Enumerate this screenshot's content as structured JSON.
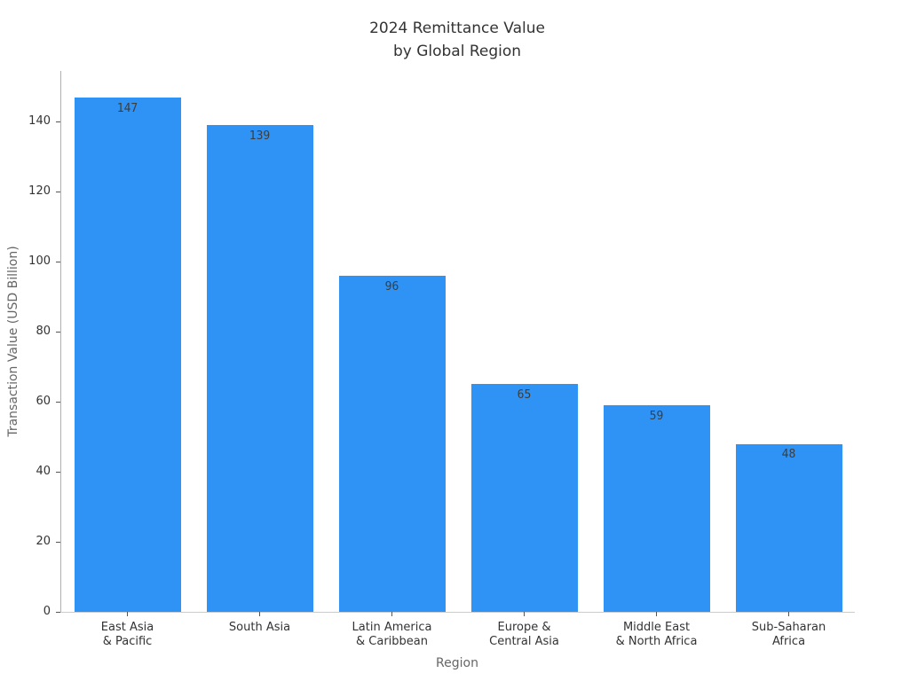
{
  "title": {
    "line1": "2024 Remittance Value",
    "line2": "by Global Region"
  },
  "chart_data": {
    "type": "bar",
    "title": "2024 Remittance Value by Global Region",
    "xlabel": "Region",
    "ylabel": "Transaction Value (USD Billion)",
    "categories": [
      [
        "East Asia",
        "& Pacific"
      ],
      [
        "South Asia"
      ],
      [
        "Latin America",
        "& Caribbean"
      ],
      [
        "Europe &",
        "Central Asia"
      ],
      [
        "Middle East",
        "& North Africa"
      ],
      [
        "Sub-Saharan",
        "Africa"
      ]
    ],
    "values": [
      147,
      139,
      96,
      65,
      59,
      48
    ],
    "bar_labels": [
      "147",
      "139",
      "96",
      "65",
      "59",
      "48"
    ],
    "yticks": [
      0,
      20,
      40,
      60,
      80,
      100,
      120,
      140
    ],
    "ylim": [
      0,
      154.5
    ],
    "grid": false,
    "legend": null,
    "bar_color": "#2F93F5",
    "bar_label_color": "#3d3d3d",
    "tick_label_color": "#333333",
    "axis_label_color": "#666666",
    "title_color": "#333333"
  }
}
